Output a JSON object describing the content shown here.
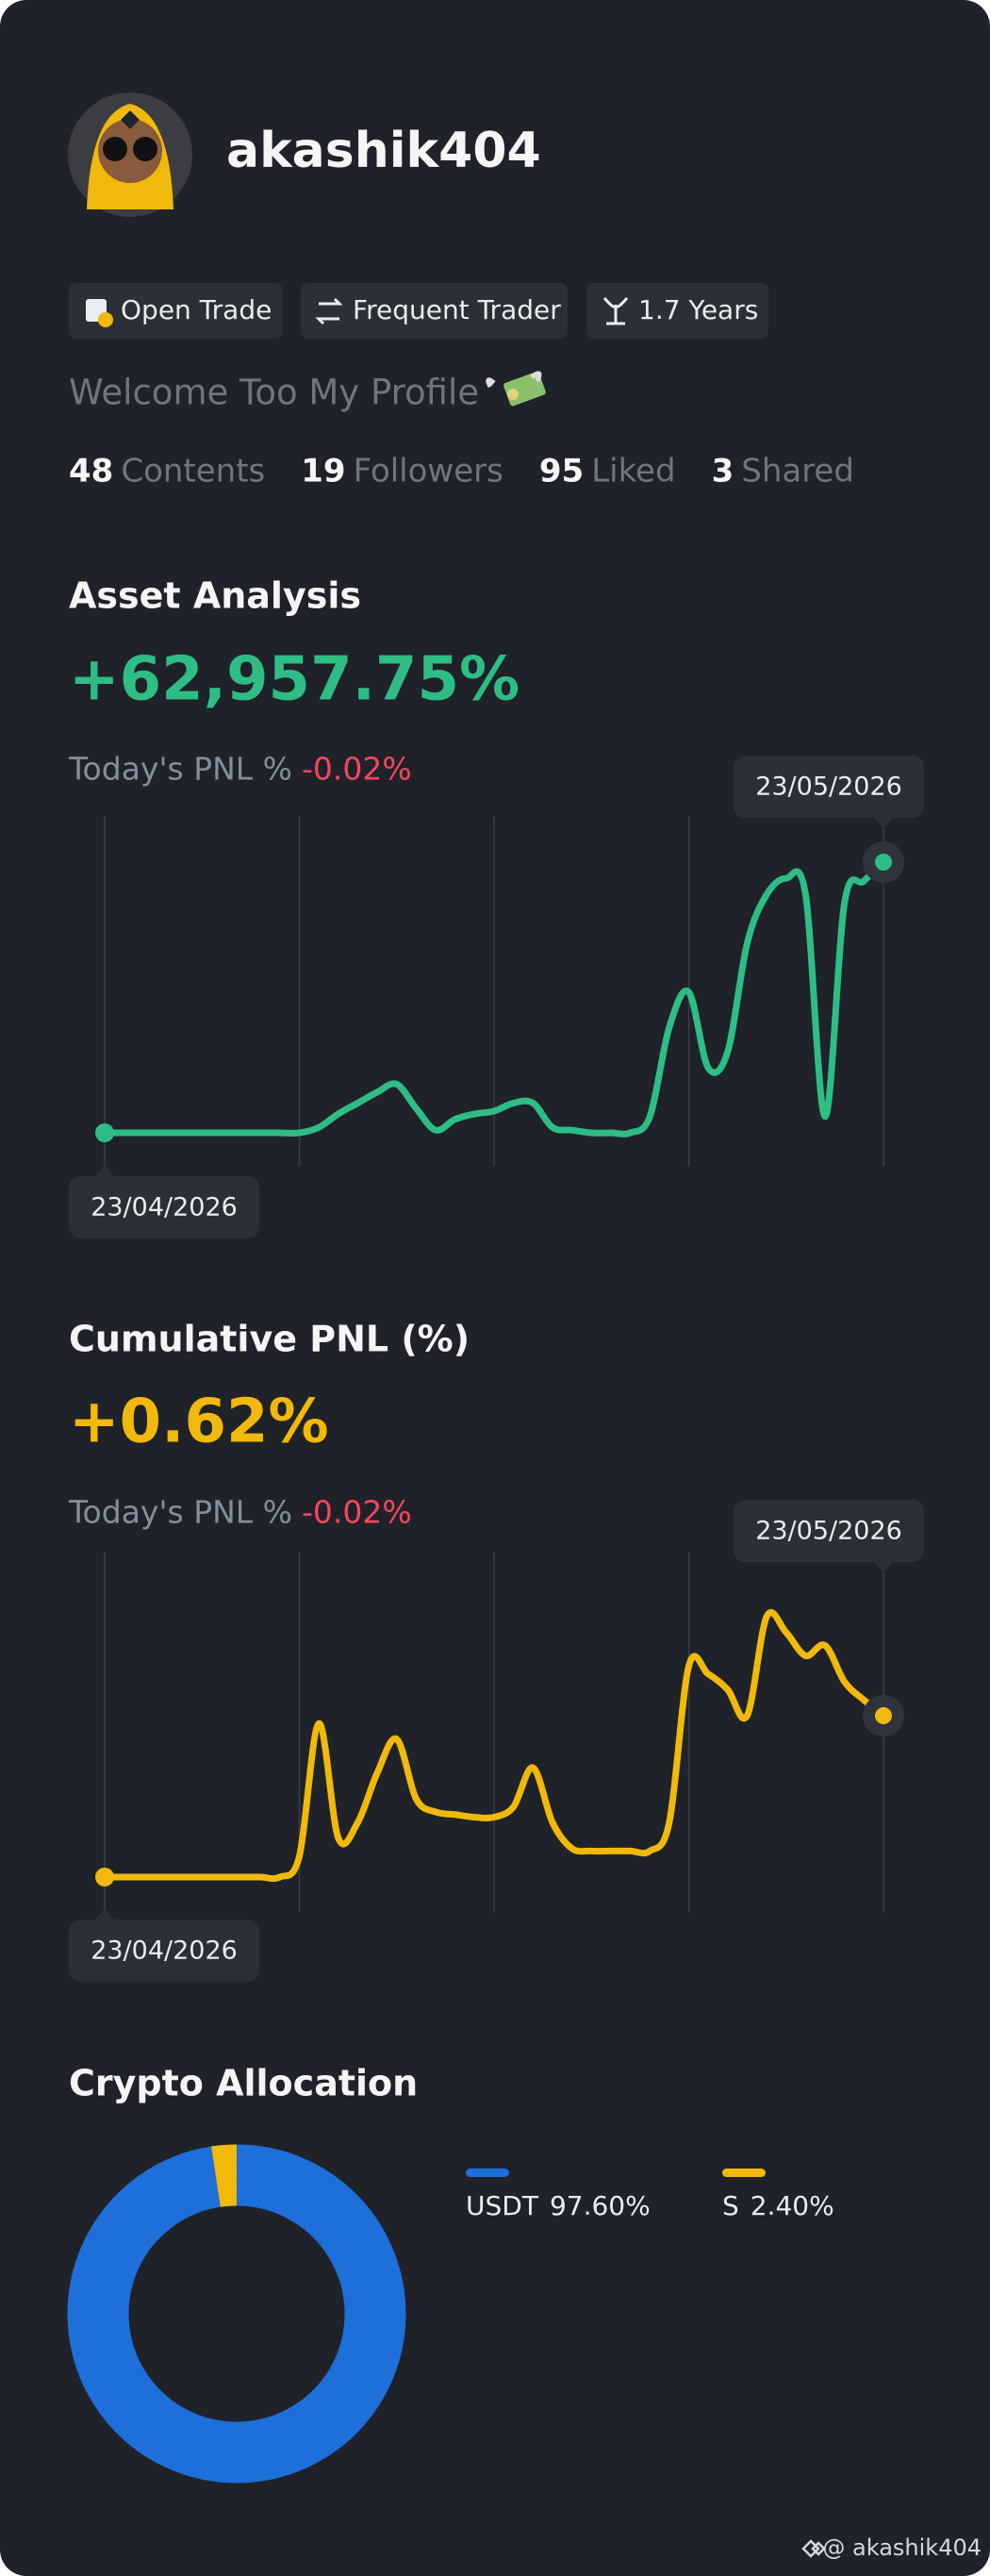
{
  "profile": {
    "username": "akashik404",
    "badges": [
      "Open Trade",
      "Frequent Trader",
      "1.7 Years"
    ],
    "bio": "Welcome Too My Profile",
    "stats": [
      {
        "value": 48,
        "label": "Contents"
      },
      {
        "value": 19,
        "label": "Followers"
      },
      {
        "value": 95,
        "label": "Liked"
      },
      {
        "value": 3,
        "label": "Shared"
      }
    ]
  },
  "chart_data": [
    {
      "type": "line",
      "title": "Asset Analysis",
      "headline": "+62,957.75%",
      "subtitle": "Today's PNL %",
      "change": "-0.02%",
      "annotations": [
        "23/04/2026",
        "23/05/2026"
      ],
      "color": "#2ebd85",
      "ylim": [
        0,
        100
      ],
      "values": [
        0,
        0,
        0,
        0,
        0,
        0,
        0,
        0,
        0,
        0,
        0,
        2,
        7,
        11,
        15,
        18,
        9,
        1,
        5,
        7,
        8,
        11,
        11,
        2,
        1,
        0,
        0,
        0,
        6,
        39,
        52,
        24,
        30,
        70,
        88,
        94,
        88,
        6,
        85,
        93,
        100
      ]
    },
    {
      "type": "line",
      "title": "Cumulative PNL (%)",
      "headline": "+0.62%",
      "subtitle": "Today's PNL %",
      "change": "-0.02%",
      "annotations": [
        "23/04/2026",
        "23/05/2026"
      ],
      "color": "#f0b90b",
      "ylim": [
        0,
        1.04
      ],
      "values": [
        0,
        0,
        0,
        0,
        0,
        0,
        0,
        0,
        0,
        0,
        0.08,
        0.59,
        0.15,
        0.21,
        0.4,
        0.53,
        0.3,
        0.25,
        0.24,
        0.23,
        0.23,
        0.27,
        0.42,
        0.21,
        0.11,
        0.1,
        0.1,
        0.1,
        0.1,
        0.21,
        0.81,
        0.78,
        0.72,
        0.62,
        1.0,
        0.94,
        0.85,
        0.89,
        0.75,
        0.68,
        0.62
      ]
    },
    {
      "type": "donut",
      "title": "Crypto Allocation",
      "categories": [
        "USDT",
        "S"
      ],
      "values": [
        97.6,
        2.4
      ],
      "value_labels": [
        "97.60%",
        "2.40%"
      ],
      "colors": [
        "#1e6fd9",
        "#f0b90b"
      ]
    }
  ],
  "watermark": "@ akashik404"
}
